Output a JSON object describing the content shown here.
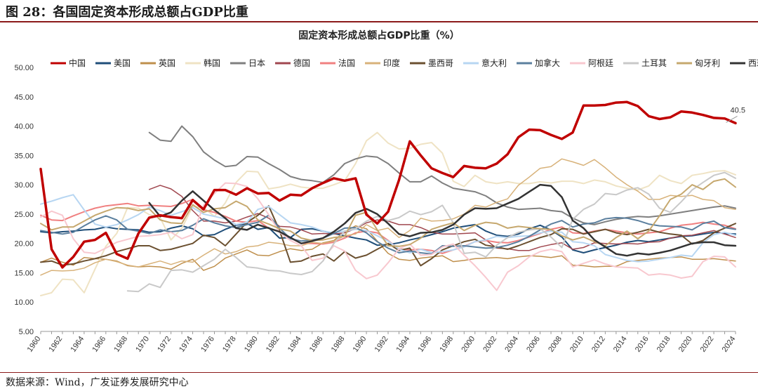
{
  "figure": {
    "title": "图 28：各国固定资本形成总额占GDP比重",
    "source": "数据来源：Wind，广发证券发展研究中心"
  },
  "colors": {
    "中国": "#c00000",
    "美国": "#1f4e79",
    "英国": "#bf8f4c",
    "韩国": "#efe3c4",
    "日本": "#7f7f7f",
    "德国": "#a0474f",
    "法国": "#f08080",
    "印度": "#d8b27a",
    "墨西哥": "#6b5030",
    "意大利": "#b7d6f2",
    "加拿大": "#5b7f9e",
    "阿根廷": "#f8c8cf",
    "土耳其": "#c9c9c9",
    "匈牙利": "#c6a86e",
    "西班牙": "#333333"
  },
  "chart_data": {
    "type": "line",
    "title": "固定资本形成总额占GDP比重（%）",
    "xlabel": "",
    "ylabel": "",
    "ylim": [
      5,
      50
    ],
    "yticks": [
      "5.00",
      "10.00",
      "15.00",
      "20.00",
      "25.00",
      "30.00",
      "35.00",
      "40.00",
      "45.00",
      "50.00"
    ],
    "xticks": [
      "1960",
      "1962",
      "1964",
      "1966",
      "1968",
      "1970",
      "1972",
      "1974",
      "1976",
      "1978",
      "1980",
      "1982",
      "1984",
      "1986",
      "1988",
      "1990",
      "1992",
      "1994",
      "1996",
      "1998",
      "2000",
      "2002",
      "2004",
      "2006",
      "2008",
      "2010",
      "2012",
      "2014",
      "2016",
      "2018",
      "2020",
      "2022",
      "2024"
    ],
    "grid": false,
    "legend": "top",
    "annotation": {
      "text": "40.5",
      "x": 2023,
      "y": 40.5
    },
    "series": [
      {
        "name": "中国",
        "start": 1960,
        "width": 3.5,
        "values": [
          32.7,
          19,
          15.9,
          17.7,
          20.3,
          20.6,
          21.8,
          18.2,
          17.4,
          21.7,
          24.4,
          24.8,
          24.5,
          24.3,
          27.4,
          25.8,
          29.1,
          29.1,
          28.3,
          29.4,
          28.5,
          28.6,
          27.3,
          28.3,
          28.2,
          29.4,
          30.3,
          31.1,
          30.7,
          31.1,
          24.9,
          23.4,
          25.4,
          30.8,
          37.4,
          35,
          32.8,
          32,
          31.3,
          33.2,
          32.9,
          32.8,
          33.6,
          35.2,
          38.1,
          39.4,
          39.3,
          38.5,
          37.8,
          38.9,
          43.5,
          43.5,
          43.6,
          44.0,
          44.1,
          43.4,
          41.7,
          41.2,
          41.5,
          42.5,
          42.3,
          41.9,
          41.4,
          41.3,
          40.5
        ]
      },
      {
        "name": "美国",
        "start": 1960,
        "width": 2,
        "values": [
          22.0,
          21.8,
          22.0,
          22.1,
          22.3,
          22.4,
          22.8,
          22.5,
          22.4,
          22.3,
          21.9,
          22.0,
          22.6,
          23.0,
          22.5,
          21.3,
          21.5,
          22.4,
          23.1,
          23.4,
          22.4,
          22.7,
          20.9,
          21.0,
          22.4,
          22.5,
          22.1,
          21.7,
          21.3,
          20.9,
          20.6,
          19.7,
          19.8,
          20.1,
          20.6,
          21.0,
          21.5,
          22.0,
          22.6,
          22.9,
          23.2,
          22.1,
          21.4,
          21.2,
          21.6,
          22.5,
          23.1,
          22.3,
          21.1,
          18.9,
          18.4,
          18.9,
          19.3,
          19.7,
          20.2,
          20.5,
          20.3,
          20.6,
          20.9,
          21.2,
          21.3,
          21.6,
          21.9,
          21.7,
          21.6
        ]
      },
      {
        "name": "英国",
        "start": 1960,
        "width": 1.5,
        "values": [
          16.8,
          17.5,
          16.8,
          16.3,
          17.6,
          17.4,
          17.3,
          17.0,
          16.2,
          16.0,
          16.1,
          16.0,
          15.6,
          16.6,
          17.3,
          15.4,
          16.1,
          17.5,
          18.2,
          18.9,
          18.0,
          17.9,
          18.6,
          19.1,
          18.8,
          19.0,
          20.1,
          20.5,
          22.0,
          23.0,
          22.5,
          20.4,
          18.3,
          17.3,
          17.1,
          17.5,
          17.7,
          17.9,
          16.9,
          17.1,
          17.4,
          17.5,
          17.6,
          17.4,
          17.7,
          17.9,
          17.8,
          17.6,
          17.9,
          16.3,
          16.2,
          16.0,
          16.1,
          16.1,
          16.9,
          17.1,
          17.3,
          17.5,
          17.6,
          17.7,
          17.3,
          17.3,
          17.4,
          17.2,
          17.0
        ]
      },
      {
        "name": "韩国",
        "start": 1960,
        "width": 2,
        "values": [
          11.1,
          11.6,
          13.9,
          13.8,
          11.6,
          15.6,
          19.5,
          21.7,
          26.1,
          26.0,
          24.9,
          24.4,
          20.6,
          22.6,
          26.3,
          26.1,
          24.6,
          26.9,
          30.4,
          32.3,
          32.2,
          29.3,
          29.6,
          30.1,
          29.6,
          29.4,
          29.4,
          30.0,
          30.7,
          33.6,
          37.5,
          38.9,
          37.1,
          36.1,
          36.2,
          36.9,
          37.2,
          35.4,
          30.6,
          29.7,
          31.6,
          30.5,
          30.2,
          30.5,
          30.2,
          30.2,
          30.5,
          30.3,
          30.6,
          30.6,
          30.2,
          30.8,
          30.5,
          29.8,
          29.4,
          29.1,
          29.8,
          31.6,
          30.7,
          30.2,
          31.6,
          31.9,
          32.3,
          32.4,
          31.7
        ]
      },
      {
        "name": "日本",
        "start": 1970,
        "width": 2,
        "values": [
          38.9,
          37.6,
          37.4,
          40.0,
          38.2,
          35.6,
          34.2,
          33.1,
          33.3,
          34.8,
          34.7,
          33.6,
          32.6,
          31.4,
          30.9,
          30.7,
          30.4,
          31.7,
          33.6,
          34.4,
          34.9,
          34.7,
          33.6,
          32.0,
          30.5,
          30.5,
          31.5,
          30.3,
          29.4,
          29.1,
          28.8,
          28.1,
          26.9,
          26.2,
          25.8,
          25.9,
          26.0,
          25.6,
          25.4,
          24.3,
          23.5,
          23.2,
          23.7,
          24.1,
          24.4,
          24.6,
          24.5,
          24.7,
          25.0,
          25.3,
          25.6,
          25.9,
          26.2,
          26.4,
          26.0
        ]
      },
      {
        "name": "德国",
        "start": 1970,
        "width": 1.5,
        "values": [
          29.2,
          29.9,
          29.3,
          28.0,
          25.6,
          23.8,
          23.8,
          23.5,
          23.8,
          24.5,
          25.1,
          24.3,
          22.9,
          22.8,
          22.3,
          21.6,
          21.7,
          21.6,
          21.8,
          22.5,
          23.5,
          24.0,
          23.8,
          23.2,
          23.2,
          22.7,
          21.9,
          21.6,
          21.6,
          21.7,
          21.8,
          20.6,
          19.2,
          19.1,
          18.8,
          18.8,
          19.4,
          19.8,
          20.1,
          19.0,
          19.3,
          20.1,
          20.0,
          19.9,
          20.0,
          19.9,
          20.2,
          20.3,
          20.9,
          21.3,
          21.4,
          21.8,
          22.2,
          21.6,
          21.0
        ]
      },
      {
        "name": "法国",
        "start": 1960,
        "width": 2,
        "values": [
          24.8,
          24.0,
          23.9,
          24.7,
          25.4,
          26.0,
          26.4,
          26.6,
          26.8,
          26.4,
          26.5,
          26.4,
          26.3,
          26.8,
          27.5,
          25.7,
          25.3,
          24.6,
          23.8,
          23.6,
          23.9,
          22.6,
          22.0,
          20.9,
          20.0,
          20.0,
          19.9,
          20.2,
          20.9,
          21.8,
          22.1,
          21.8,
          20.5,
          19.0,
          18.9,
          19.0,
          18.8,
          18.3,
          18.9,
          19.5,
          20.3,
          20.5,
          20.2,
          20.1,
          20.5,
          21.1,
          21.7,
          22.4,
          22.8,
          21.8,
          21.7,
          22.1,
          22.4,
          22.1,
          21.8,
          21.6,
          21.8,
          22.0,
          22.6,
          23.1,
          23.3,
          23.6,
          23.3,
          23.1,
          22.5
        ]
      },
      {
        "name": "印度",
        "start": 1960,
        "width": 1.5,
        "values": [
          14.6,
          15.4,
          15.3,
          15.4,
          15.8,
          16.7,
          17.3,
          16.9,
          16.3,
          16.0,
          16.5,
          17.0,
          16.4,
          17.0,
          16.8,
          18.0,
          19.1,
          18.2,
          18.6,
          19.4,
          19.6,
          20.2,
          20.0,
          19.6,
          19.6,
          20.2,
          20.0,
          20.4,
          21.3,
          21.6,
          23.2,
          22.2,
          22.6,
          21.0,
          22.2,
          24.3,
          23.8,
          23.9,
          24.2,
          25.0,
          26.5,
          26.2,
          27.0,
          27.6,
          29.9,
          31.3,
          32.8,
          33.1,
          34.4,
          33.9,
          33.3,
          34.3,
          32.9,
          31.3,
          30.0,
          28.9,
          27.5,
          27.5,
          28.2,
          28.0,
          28.2,
          27.5,
          27.3,
          26.1,
          25.8
        ]
      },
      {
        "name": "墨西哥",
        "start": 1960,
        "width": 2,
        "values": [
          16.8,
          17.0,
          16.3,
          16.5,
          17.0,
          17.4,
          17.9,
          18.6,
          19.1,
          19.6,
          19.6,
          18.8,
          19.0,
          19.5,
          20.0,
          21.4,
          21.0,
          19.6,
          21.6,
          23.6,
          24.8,
          26.4,
          22.2,
          16.8,
          17.0,
          17.8,
          18.2,
          17.0,
          18.6,
          17.5,
          18.0,
          19.0,
          20.0,
          18.8,
          19.2,
          16.2,
          17.4,
          18.9,
          19.6,
          20.3,
          20.7,
          19.7,
          19.4,
          19.0,
          19.6,
          20.3,
          21.0,
          21.5,
          22.5,
          22.4,
          21.6,
          22.0,
          22.4,
          21.8,
          21.5,
          21.9,
          22.4,
          21.9,
          21.6,
          21.4,
          19.9,
          20.5,
          21.8,
          22.6,
          23.4
        ]
      },
      {
        "name": "意大利",
        "start": 1960,
        "width": 2,
        "values": [
          26.7,
          27.2,
          27.8,
          28.3,
          25.7,
          23.3,
          22.8,
          23.2,
          24.0,
          24.9,
          26.2,
          25.6,
          24.8,
          25.4,
          26.1,
          25.0,
          24.6,
          24.2,
          23.2,
          23.6,
          25.8,
          26.3,
          24.9,
          23.5,
          23.2,
          22.8,
          22.1,
          21.8,
          22.1,
          22.4,
          22.2,
          21.3,
          20.4,
          19.0,
          18.4,
          19.0,
          18.4,
          18.6,
          18.9,
          19.4,
          20.3,
          20.6,
          21.2,
          21.0,
          21.2,
          21.3,
          21.8,
          22.1,
          21.9,
          20.3,
          20.1,
          19.6,
          18.1,
          17.6,
          17.1,
          16.9,
          17.0,
          17.3,
          17.6,
          18.0,
          17.8,
          20.1,
          21.5,
          21.9,
          21.4
        ]
      },
      {
        "name": "加拿大",
        "start": 1960,
        "width": 2,
        "values": [
          22.2,
          21.9,
          21.6,
          21.9,
          23.0,
          24.0,
          24.7,
          24.0,
          22.4,
          22.1,
          21.7,
          22.3,
          22.0,
          22.2,
          23.1,
          24.2,
          23.5,
          23.0,
          22.7,
          23.2,
          23.6,
          24.8,
          22.6,
          20.8,
          20.4,
          20.6,
          20.9,
          21.7,
          22.6,
          22.7,
          21.8,
          20.3,
          19.2,
          18.4,
          18.7,
          18.4,
          18.2,
          19.6,
          19.5,
          19.6,
          19.4,
          19.2,
          19.3,
          19.7,
          20.3,
          21.2,
          22.3,
          23.3,
          23.9,
          22.8,
          23.3,
          23.5,
          24.2,
          24.4,
          24.3,
          23.9,
          23.3,
          23.0,
          22.9,
          22.8,
          22.3,
          23.4,
          23.8,
          22.7,
          22.4
        ]
      },
      {
        "name": "阿根廷",
        "start": 1960,
        "width": 2,
        "values": [
          24.5,
          25.5,
          24.8,
          20.8,
          18.5,
          18.3,
          19.2,
          20.2,
          20.7,
          21.2,
          21.3,
          21.5,
          21.9,
          20.8,
          21.5,
          26.5,
          28.5,
          30.3,
          30.2,
          29.7,
          27.6,
          24.9,
          21.9,
          20.5,
          19.6,
          17.1,
          17.5,
          19.6,
          18.7,
          15.4,
          14.0,
          14.6,
          16.7,
          19.1,
          19.9,
          18.0,
          18.1,
          19.4,
          19.9,
          18.0,
          16.2,
          14.2,
          12.0,
          15.1,
          16.2,
          17.7,
          18.6,
          19.0,
          18.6,
          16.0,
          16.6,
          17.2,
          16.5,
          16.0,
          15.9,
          15.8,
          14.6,
          14.8,
          14.6,
          14.1,
          14.4,
          16.9,
          17.8,
          17.7,
          16.0
        ]
      },
      {
        "name": "土耳其",
        "start": 1968,
        "width": 2,
        "values": [
          11.9,
          11.8,
          13.1,
          12.5,
          15.4,
          15.5,
          15.1,
          16.2,
          17.3,
          19.0,
          17.6,
          16.0,
          15.8,
          15.4,
          15.3,
          14.9,
          14.7,
          15.2,
          17.0,
          20.0,
          22.1,
          22.5,
          23.8,
          24.6,
          23.9,
          24.4,
          25.5,
          24.9,
          25.4,
          26.5,
          23.5,
          18.3,
          18.5,
          17.7,
          19.7,
          21.0,
          21.9,
          22.3,
          22.5,
          21.1,
          19.3,
          24.1,
          25.8,
          26.7,
          28.5,
          28.3,
          29.1,
          29.5,
          28.4,
          26.0,
          25.3,
          27.1,
          29.1,
          30.4,
          31.6,
          32.1,
          31.1
        ]
      },
      {
        "name": "匈牙利",
        "start": 1960,
        "width": 2,
        "values": [
          23.4,
          22.3,
          22.8,
          22.8,
          23.8,
          24.8,
          25.5,
          26.1,
          26.0,
          25.6,
          25.9,
          24.0,
          23.5,
          23.4,
          26.6,
          25.3,
          25.9,
          26.1,
          27.2,
          26.3,
          24.0,
          23.3,
          22.5,
          22.1,
          20.9,
          20.5,
          20.6,
          21.0,
          21.2,
          24.8,
          25.3,
          22.3,
          19.6,
          19.5,
          19.8,
          20.9,
          22.4,
          23.0,
          23.5,
          22.2,
          23.1,
          23.6,
          23.4,
          22.6,
          22.9,
          22.7,
          22.5,
          22.4,
          21.3,
          20.6,
          21.1,
          20.3,
          19.6,
          21.0,
          22.1,
          20.8,
          22.1,
          24.7,
          27.5,
          28.4,
          30.0,
          29.2,
          30.6,
          31.0,
          29.6
        ]
      },
      {
        "name": "西班牙",
        "start": 1970,
        "width": 2.5,
        "values": [
          26.9,
          24.6,
          25.3,
          27.3,
          28.9,
          27.3,
          25.7,
          24.3,
          22.6,
          22.3,
          23.2,
          22.6,
          22.0,
          21.0,
          20.0,
          20.4,
          20.9,
          22.0,
          23.4,
          25.2,
          25.9,
          25.0,
          23.4,
          21.6,
          21.2,
          21.8,
          21.9,
          22.3,
          23.2,
          24.9,
          26.0,
          25.9,
          26.0,
          26.8,
          27.6,
          28.8,
          30.0,
          29.8,
          27.9,
          23.9,
          22.6,
          20.6,
          19.4,
          18.2,
          17.9,
          18.3,
          18.1,
          18.4,
          18.8,
          19.4,
          20.0,
          20.2,
          20.2,
          19.7,
          19.6
        ]
      }
    ]
  }
}
